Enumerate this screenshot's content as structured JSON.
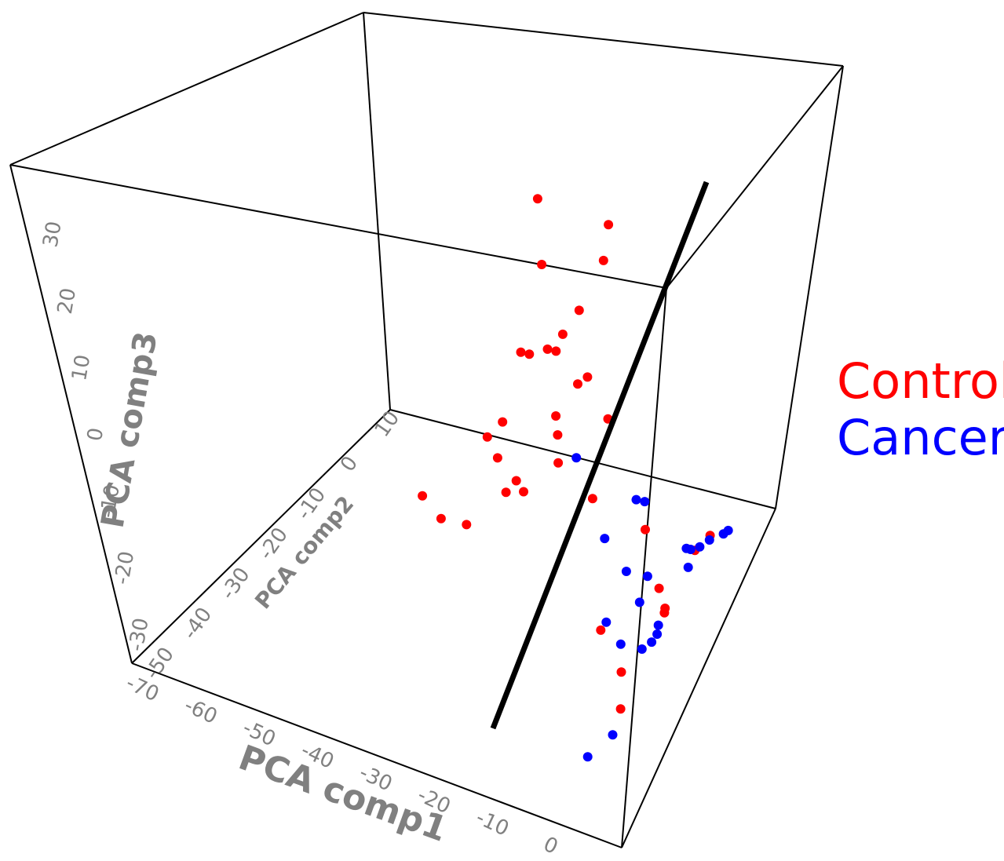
{
  "chart_data": {
    "type": "scatter",
    "projection": "3d",
    "axes": {
      "x": {
        "label": "PCA comp1",
        "ticks": [
          -70,
          -60,
          -50,
          -40,
          -30,
          -20,
          -10,
          0
        ]
      },
      "y": {
        "label": "PCA comp2",
        "ticks": [
          -50,
          -40,
          -30,
          -20,
          -10,
          0,
          10
        ]
      },
      "z": {
        "label": "PCA comp3",
        "ticks": [
          -30,
          -20,
          -10,
          0,
          10,
          20,
          30
        ]
      }
    },
    "legend": {
      "placement": "right",
      "items": [
        {
          "label": "Control",
          "color": "#ff0000"
        },
        {
          "label": "Cancer",
          "color": "#0000ff"
        }
      ]
    },
    "series": [
      {
        "name": "Control",
        "color": "#ff0000",
        "points": [
          [
            -55,
            10,
            33
          ],
          [
            -38,
            10,
            32
          ],
          [
            -52,
            10,
            26
          ],
          [
            -38,
            10,
            28
          ],
          [
            -42,
            10,
            22
          ],
          [
            -45,
            10,
            19
          ],
          [
            -46,
            10,
            17
          ],
          [
            -48,
            10,
            17
          ],
          [
            -52,
            10,
            16
          ],
          [
            -54,
            10,
            16
          ],
          [
            -38,
            10,
            15
          ],
          [
            -40,
            10,
            14
          ],
          [
            -32,
            10,
            11
          ],
          [
            -44,
            10,
            10
          ],
          [
            -43,
            10,
            8
          ],
          [
            -56,
            10,
            8
          ],
          [
            -59,
            10,
            6
          ],
          [
            -42,
            10,
            5
          ],
          [
            -56,
            10,
            4
          ],
          [
            -51,
            10,
            2
          ],
          [
            -33,
            10,
            2
          ],
          [
            -49,
            10,
            1
          ],
          [
            -53,
            10,
            0.5
          ],
          [
            -20,
            10,
            0
          ],
          [
            -72,
            10,
            -2
          ],
          [
            -67,
            10,
            -4
          ],
          [
            -61,
            10,
            -4
          ],
          [
            -5,
            10,
            1
          ],
          [
            -8,
            10,
            -1
          ],
          [
            -15,
            10,
            -6
          ],
          [
            -13,
            10,
            -8
          ],
          [
            -13,
            10,
            -8.5
          ],
          [
            -27,
            10,
            -12
          ],
          [
            -21,
            10,
            -16
          ],
          [
            -20,
            10,
            -20
          ]
        ]
      },
      {
        "name": "Cancer",
        "color": "#0000ff",
        "points": [
          [
            -38,
            10,
            6
          ],
          [
            -23,
            10,
            3
          ],
          [
            -21,
            10,
            3
          ],
          [
            -29,
            10,
            -2
          ],
          [
            -10,
            10,
            -1
          ],
          [
            -9,
            10,
            -1
          ],
          [
            -7,
            10,
            -0.5
          ],
          [
            -5,
            10,
            0.5
          ],
          [
            -2,
            10,
            1.5
          ],
          [
            -1,
            10,
            2
          ],
          [
            -9,
            10,
            -3
          ],
          [
            -23,
            10,
            -5
          ],
          [
            -18,
            10,
            -5
          ],
          [
            -19,
            10,
            -8
          ],
          [
            -14,
            10,
            -11
          ],
          [
            -14,
            10,
            -10
          ],
          [
            -15,
            10,
            -12
          ],
          [
            -17,
            10,
            -13
          ],
          [
            -26,
            10,
            -11
          ],
          [
            -22,
            10,
            -13
          ],
          [
            -21,
            10,
            -23
          ],
          [
            -26,
            10,
            -26
          ]
        ]
      }
    ],
    "annotation": {
      "type": "separating-line",
      "color": "#000000"
    }
  }
}
